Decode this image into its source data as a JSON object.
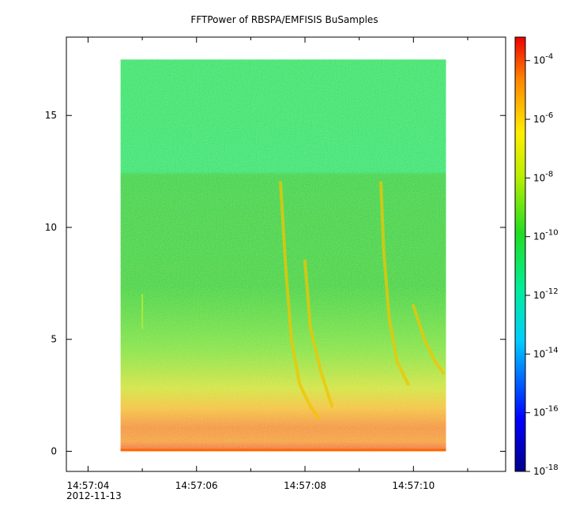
{
  "chart_data": {
    "type": "heatmap",
    "title": "FFTPower of RBSPA/EMFISIS  BuSamples",
    "x": {
      "tick_labels": [
        "14:57:04",
        "14:57:06",
        "14:57:08",
        "14:57:10"
      ],
      "tick_values": [
        0,
        2,
        4,
        6
      ],
      "minor_values": [
        1,
        3,
        5,
        7
      ],
      "range": [
        -0.4,
        7.7
      ],
      "date_label": "2012-11-13"
    },
    "y": {
      "tick_labels": [
        "0",
        "5",
        "10",
        "15"
      ],
      "tick_values": [
        0,
        5,
        10,
        15
      ],
      "range": [
        -0.9,
        18.5
      ]
    },
    "data_extent": {
      "x": [
        0.6,
        6.6
      ],
      "y": [
        0,
        17.5
      ],
      "cutoff_y": 12.2
    },
    "colorbar": {
      "scale": "log",
      "range_exp": [
        -18,
        -3.2
      ],
      "tick_exps": [
        -4,
        -6,
        -8,
        -10,
        -12,
        -14,
        -16,
        -18
      ],
      "tick_labels": [
        "10-4",
        "10-6",
        "10-8",
        "10-10",
        "10-12",
        "10-14",
        "10-16",
        "10-18"
      ]
    },
    "features": [
      {
        "kind": "chorus",
        "points": [
          [
            3.55,
            12.0
          ],
          [
            3.65,
            8.0
          ],
          [
            3.75,
            5.0
          ],
          [
            3.9,
            3.0
          ],
          [
            4.1,
            2.0
          ],
          [
            4.25,
            1.5
          ]
        ]
      },
      {
        "kind": "chorus",
        "points": [
          [
            4.0,
            8.5
          ],
          [
            4.1,
            5.5
          ],
          [
            4.3,
            3.5
          ],
          [
            4.5,
            2.0
          ]
        ]
      },
      {
        "kind": "chorus",
        "points": [
          [
            5.4,
            12.0
          ],
          [
            5.45,
            9.0
          ],
          [
            5.55,
            6.0
          ],
          [
            5.7,
            4.0
          ],
          [
            5.9,
            3.0
          ]
        ]
      },
      {
        "kind": "chorus",
        "points": [
          [
            6.0,
            6.5
          ],
          [
            6.2,
            5.0
          ],
          [
            6.4,
            4.0
          ],
          [
            6.55,
            3.5
          ]
        ]
      },
      {
        "kind": "line",
        "points": [
          [
            1.0,
            7.0
          ],
          [
            1.0,
            5.5
          ]
        ]
      }
    ],
    "colors": {
      "top_band": "#00ee6e",
      "mid_band": "#33dd22",
      "low_band": "#ffcc00",
      "bottom_band": "#ff8800"
    }
  }
}
